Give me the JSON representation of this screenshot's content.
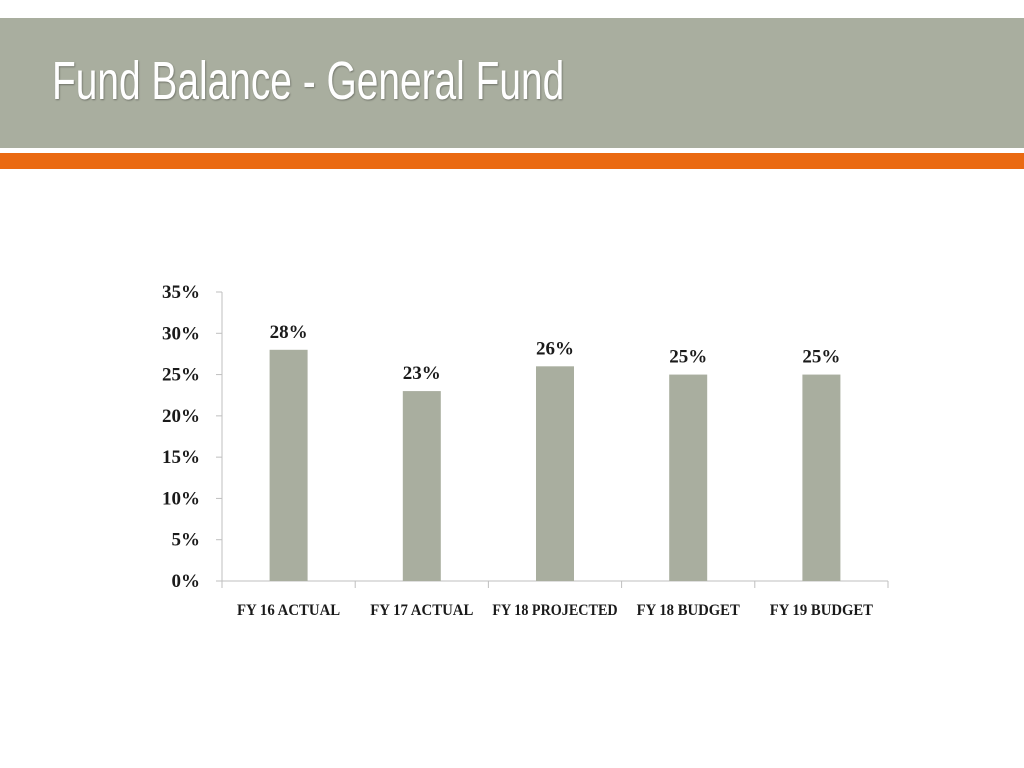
{
  "slide": {
    "title": "Fund Balance - General Fund"
  },
  "colors": {
    "header": "#a9ae9f",
    "accent": "#ea6a12",
    "bar": "#a9ae9f",
    "axis": "#bfbfbf"
  },
  "chart_data": {
    "type": "bar",
    "title": "",
    "xlabel": "",
    "ylabel": "",
    "categories": [
      "FY 16 ACTUAL",
      "FY 17 ACTUAL",
      "FY 18 PROJECTED",
      "FY 18 BUDGET",
      "FY 19 BUDGET"
    ],
    "values": [
      28,
      23,
      26,
      25,
      25
    ],
    "data_labels": [
      "28%",
      "23%",
      "26%",
      "25%",
      "25%"
    ],
    "ylim": [
      0,
      35
    ],
    "yticks": [
      0,
      5,
      10,
      15,
      20,
      25,
      30,
      35
    ],
    "ytick_labels": [
      "0%",
      "5%",
      "10%",
      "15%",
      "20%",
      "25%",
      "30%",
      "35%"
    ],
    "grid": false,
    "legend": "none"
  }
}
